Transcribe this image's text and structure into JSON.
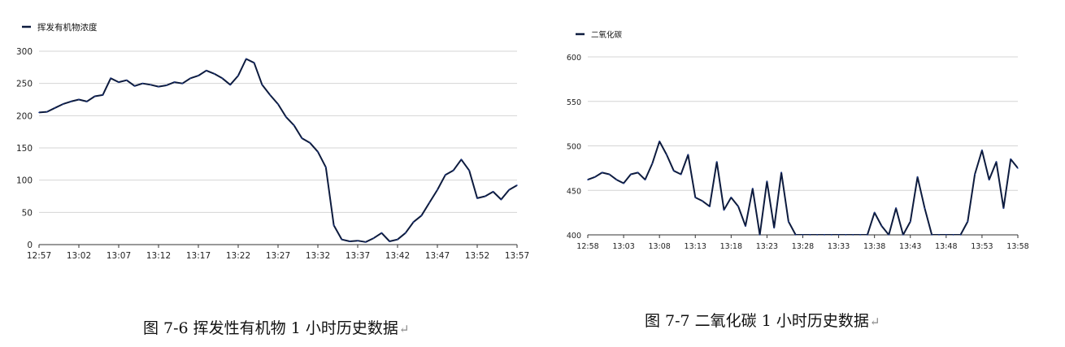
{
  "colors": {
    "line": "#0d1b3e",
    "grid": "#d4d4d4",
    "axis": "#333333",
    "accent": "#1f3d99"
  },
  "captions": {
    "left": "图 7-6 挥发性有机物 1 小时历史数据",
    "right": "图 7-7 二氧化碳 1 小时历史数据",
    "return_mark": "↵"
  },
  "chart_data": [
    {
      "type": "line",
      "legend_position": "top-left",
      "grid": true,
      "ylim": [
        0,
        300
      ],
      "yticks": [
        "0",
        "50",
        "100",
        "150",
        "200",
        "250",
        "300"
      ],
      "xticks": [
        "12:57",
        "13:02",
        "13:07",
        "13:12",
        "13:17",
        "13:22",
        "13:27",
        "13:32",
        "13:37",
        "13:42",
        "13:47",
        "13:52",
        "13:57"
      ],
      "series": [
        {
          "name": "挥发有机物浓度",
          "color": "#0d1b3e",
          "x_minutes": [
            0,
            1,
            2,
            3,
            4,
            5,
            6,
            7,
            8,
            9,
            10,
            11,
            12,
            13,
            14,
            15,
            16,
            17,
            18,
            19,
            20,
            21,
            22,
            23,
            24,
            25,
            26,
            27,
            28,
            29,
            30,
            31,
            32,
            33,
            34,
            35,
            36,
            37,
            38,
            39,
            40,
            41,
            42,
            43,
            44,
            45,
            46,
            47,
            48,
            49,
            50,
            51,
            52,
            53,
            54,
            55,
            56,
            57,
            58,
            59,
            60
          ],
          "values": [
            205,
            206,
            212,
            218,
            222,
            225,
            222,
            230,
            232,
            258,
            252,
            255,
            246,
            250,
            248,
            245,
            247,
            252,
            250,
            258,
            262,
            270,
            265,
            258,
            248,
            262,
            288,
            282,
            248,
            232,
            218,
            198,
            185,
            165,
            158,
            144,
            120,
            30,
            8,
            5,
            6,
            4,
            10,
            18,
            5,
            8,
            18,
            35,
            45,
            65,
            85,
            108,
            115,
            132,
            115,
            72,
            75,
            82,
            70,
            85,
            92
          ]
        }
      ]
    },
    {
      "type": "line",
      "legend_position": "top-left",
      "grid": true,
      "ylim": [
        400,
        600
      ],
      "yticks": [
        "400",
        "450",
        "500",
        "550",
        "600"
      ],
      "xticks": [
        "12:58",
        "13:03",
        "13:08",
        "13:13",
        "13:18",
        "13:23",
        "13:28",
        "13:33",
        "13:38",
        "13:43",
        "13:48",
        "13:53",
        "13:58"
      ],
      "series": [
        {
          "name": "二氧化碳",
          "color": "#0d1b3e",
          "x_minutes": [
            0,
            1,
            2,
            3,
            4,
            5,
            6,
            7,
            8,
            9,
            10,
            11,
            12,
            13,
            14,
            15,
            16,
            17,
            18,
            19,
            20,
            21,
            22,
            23,
            24,
            25,
            26,
            27,
            28,
            29,
            30,
            31,
            32,
            33,
            34,
            35,
            36,
            37,
            38,
            39,
            40,
            41,
            42,
            43,
            44,
            45,
            46,
            47,
            48,
            49,
            50,
            51,
            52,
            53,
            54,
            55,
            56,
            57,
            58,
            59,
            60
          ],
          "values": [
            462,
            465,
            470,
            468,
            462,
            458,
            468,
            470,
            462,
            480,
            505,
            490,
            472,
            468,
            490,
            442,
            438,
            432,
            482,
            428,
            442,
            432,
            410,
            452,
            400,
            460,
            408,
            470,
            415,
            400,
            400,
            400,
            400,
            400,
            400,
            400,
            400,
            400,
            400,
            400,
            425,
            410,
            400,
            430,
            400,
            415,
            465,
            430,
            400,
            400,
            400,
            400,
            400,
            415,
            468,
            495,
            462,
            482,
            430,
            485,
            475
          ]
        }
      ]
    }
  ]
}
